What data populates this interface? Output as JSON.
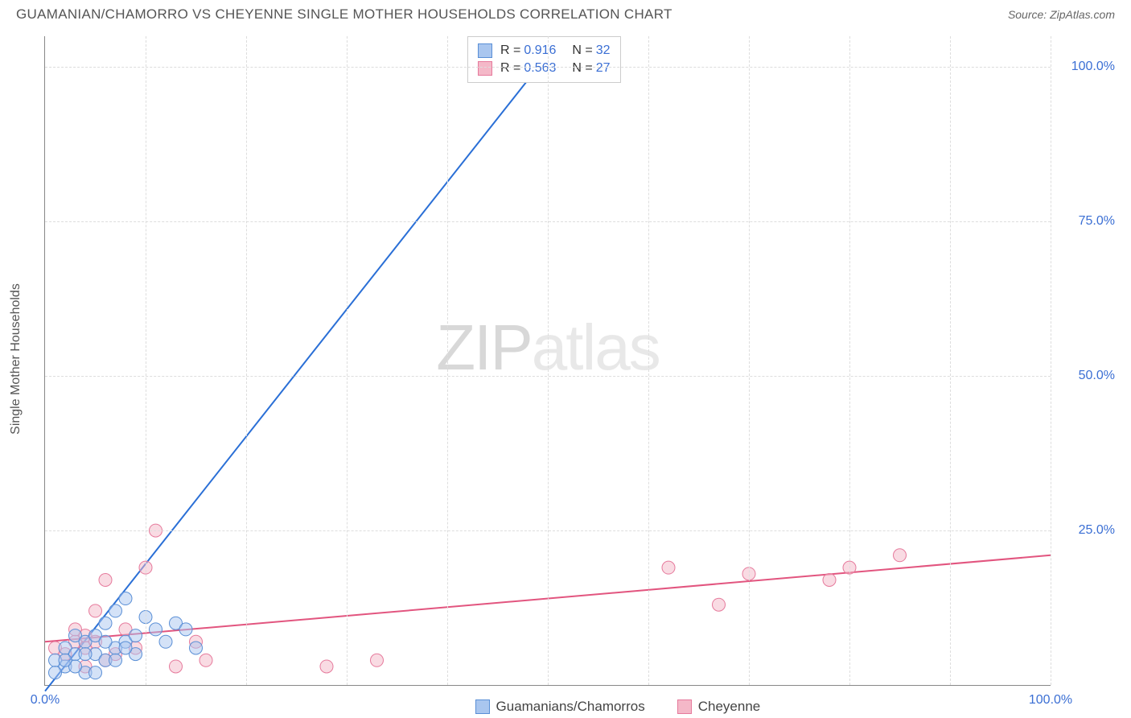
{
  "header": {
    "title": "GUAMANIAN/CHAMORRO VS CHEYENNE SINGLE MOTHER HOUSEHOLDS CORRELATION CHART",
    "source_prefix": "Source: ",
    "source": "ZipAtlas.com"
  },
  "chart": {
    "type": "scatter",
    "y_axis_label": "Single Mother Households",
    "xlim": [
      0,
      100
    ],
    "ylim": [
      0,
      105
    ],
    "x_ticks": [
      0,
      100
    ],
    "x_tick_labels": [
      "0.0%",
      "100.0%"
    ],
    "y_ticks": [
      25,
      50,
      75,
      100
    ],
    "y_tick_labels": [
      "25.0%",
      "50.0%",
      "75.0%",
      "100.0%"
    ],
    "v_grid_positions": [
      10,
      20,
      30,
      40,
      50,
      60,
      70,
      80,
      90,
      100
    ],
    "background_color": "#ffffff",
    "grid_color": "#dddddd",
    "axis_color": "#888888",
    "tick_label_color": "#3b6fd4",
    "axis_label_color": "#555555",
    "marker_radius": 8,
    "marker_opacity": 0.5,
    "line_width": 2,
    "series": {
      "guamanians": {
        "label": "Guamanians/Chamorros",
        "color_fill": "#a9c6ef",
        "color_stroke": "#5a8fd6",
        "line_color": "#2a6fd6",
        "R": "0.916",
        "N": "32",
        "trend": {
          "x1": 0,
          "y1": -1,
          "x2": 50,
          "y2": 102
        },
        "points": [
          [
            1,
            4
          ],
          [
            2,
            3
          ],
          [
            2,
            6
          ],
          [
            3,
            5
          ],
          [
            3,
            8
          ],
          [
            4,
            7
          ],
          [
            4,
            2
          ],
          [
            5,
            5
          ],
          [
            5,
            8
          ],
          [
            6,
            4
          ],
          [
            6,
            10
          ],
          [
            7,
            6
          ],
          [
            7,
            12
          ],
          [
            8,
            7
          ],
          [
            8,
            14
          ],
          [
            9,
            8
          ],
          [
            9,
            5
          ],
          [
            10,
            11
          ],
          [
            11,
            9
          ],
          [
            12,
            7
          ],
          [
            13,
            10
          ],
          [
            14,
            9
          ],
          [
            5,
            2
          ],
          [
            6,
            7
          ],
          [
            7,
            4
          ],
          [
            8,
            6
          ],
          [
            3,
            3
          ],
          [
            4,
            5
          ],
          [
            2,
            4
          ],
          [
            1,
            2
          ],
          [
            50,
            101
          ],
          [
            15,
            6
          ]
        ]
      },
      "cheyenne": {
        "label": "Cheyenne",
        "color_fill": "#f4b8c8",
        "color_stroke": "#e67a9c",
        "line_color": "#e2557f",
        "R": "0.563",
        "N": "27",
        "trend": {
          "x1": 0,
          "y1": 7,
          "x2": 100,
          "y2": 21
        },
        "points": [
          [
            1,
            6
          ],
          [
            2,
            5
          ],
          [
            3,
            7
          ],
          [
            3,
            9
          ],
          [
            4,
            6
          ],
          [
            4,
            8
          ],
          [
            5,
            12
          ],
          [
            5,
            7
          ],
          [
            6,
            17
          ],
          [
            7,
            5
          ],
          [
            8,
            9
          ],
          [
            9,
            6
          ],
          [
            10,
            19
          ],
          [
            11,
            25
          ],
          [
            13,
            3
          ],
          [
            15,
            7
          ],
          [
            16,
            4
          ],
          [
            28,
            3
          ],
          [
            33,
            4
          ],
          [
            62,
            19
          ],
          [
            67,
            13
          ],
          [
            70,
            18
          ],
          [
            78,
            17
          ],
          [
            80,
            19
          ],
          [
            85,
            21
          ],
          [
            4,
            3
          ],
          [
            6,
            4
          ]
        ]
      }
    }
  },
  "legend_top": {
    "r_label": "R =",
    "n_label": "N ="
  },
  "watermark": {
    "zip": "ZIP",
    "atlas": "atlas"
  }
}
